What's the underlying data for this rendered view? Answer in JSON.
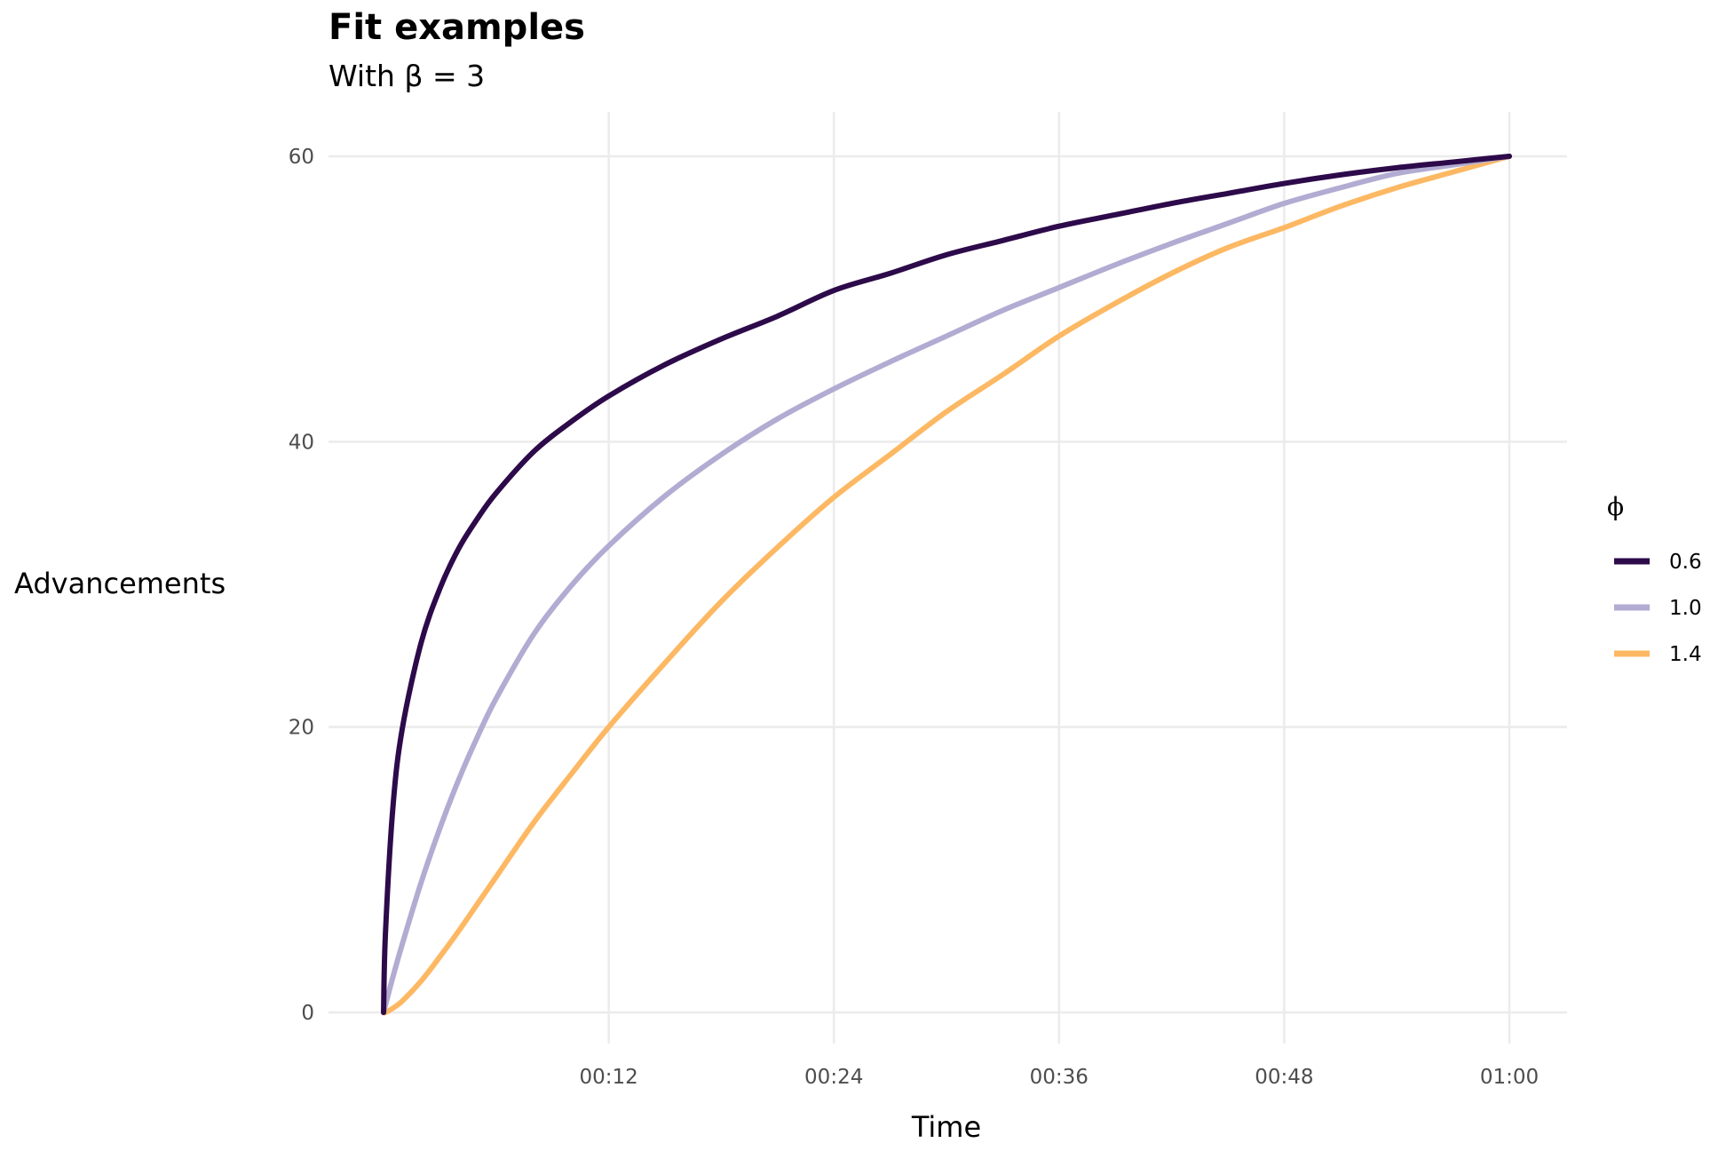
{
  "chart_data": {
    "type": "line",
    "title": "Fit examples",
    "subtitle": "With β = 3",
    "xlabel": "Time",
    "ylabel": "Advancements",
    "x_unit": "minutes",
    "xlim": [
      0,
      60
    ],
    "ylim": [
      0,
      60
    ],
    "x_ticks": [
      {
        "value": 12,
        "label": "00:12"
      },
      {
        "value": 24,
        "label": "00:24"
      },
      {
        "value": 36,
        "label": "00:36"
      },
      {
        "value": 48,
        "label": "00:48"
      },
      {
        "value": 60,
        "label": "01:00"
      }
    ],
    "y_ticks": [
      {
        "value": 0,
        "label": "0"
      },
      {
        "value": 20,
        "label": "20"
      },
      {
        "value": 40,
        "label": "40"
      },
      {
        "value": 60,
        "label": "60"
      }
    ],
    "grid": true,
    "legend": {
      "title": "ϕ",
      "position": "right"
    },
    "x": [
      0,
      0.1,
      0.5,
      1,
      2,
      3,
      4,
      5,
      6,
      8,
      10,
      12,
      15,
      18,
      21,
      24,
      27,
      30,
      33,
      36,
      39,
      42,
      45,
      48,
      51,
      54,
      57,
      60
    ],
    "series": [
      {
        "name": "0.6",
        "color": "#2d0a4a",
        "values": [
          0,
          5.5,
          14.4,
          19.9,
          25.9,
          29.7,
          32.5,
          34.6,
          36.4,
          39.3,
          41.4,
          43.2,
          45.4,
          47.2,
          48.8,
          50.6,
          51.8,
          53.1,
          54.1,
          55.1,
          55.9,
          56.7,
          57.4,
          58.1,
          58.7,
          59.2,
          59.6,
          60
        ]
      },
      {
        "name": "1.0",
        "color": "#b2abd2",
        "values": [
          0,
          0.5,
          2.5,
          4.8,
          9.1,
          12.9,
          16.3,
          19.3,
          22.0,
          26.5,
          29.9,
          32.7,
          36.2,
          39.1,
          41.6,
          43.7,
          45.6,
          47.4,
          49.2,
          50.8,
          52.4,
          53.9,
          55.3,
          56.7,
          57.8,
          58.8,
          59.4,
          60
        ]
      },
      {
        "name": "1.4",
        "color": "#fdb863",
        "values": [
          0,
          0.0,
          0.3,
          0.8,
          2.2,
          3.9,
          5.7,
          7.6,
          9.5,
          13.3,
          16.7,
          20.0,
          24.5,
          28.8,
          32.6,
          36.1,
          39.1,
          42.1,
          44.7,
          47.4,
          49.7,
          51.8,
          53.6,
          55.0,
          56.5,
          57.8,
          58.9,
          60
        ]
      }
    ]
  }
}
